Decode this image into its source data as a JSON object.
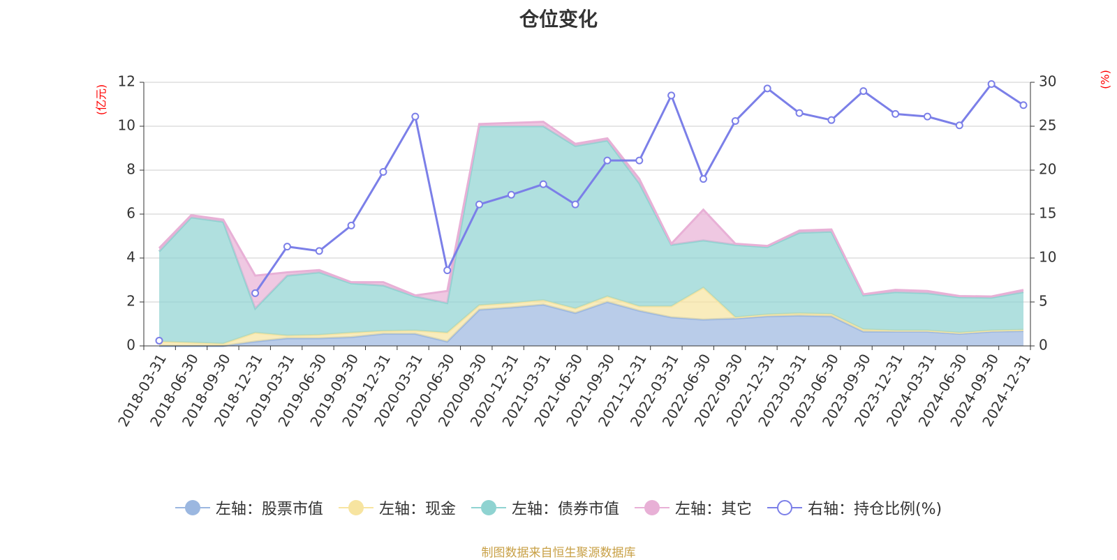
{
  "chart_data": {
    "type": "area",
    "title": "仓位变化",
    "ylabel_left": "(亿元)",
    "ylabel_right": "(%)",
    "ylim_left": [
      0,
      12
    ],
    "ylim_right": [
      0,
      30
    ],
    "yticks_left": [
      0,
      2,
      4,
      6,
      8,
      10,
      12
    ],
    "yticks_right": [
      0,
      5,
      10,
      15,
      20,
      25,
      30
    ],
    "grid": true,
    "legend_position": "bottom",
    "x": [
      "2018-03-31",
      "2018-06-30",
      "2018-09-30",
      "2018-12-31",
      "2019-03-31",
      "2019-06-30",
      "2019-09-30",
      "2019-12-31",
      "2020-03-31",
      "2020-06-30",
      "2020-09-30",
      "2020-12-31",
      "2021-03-31",
      "2021-06-30",
      "2021-09-30",
      "2021-12-31",
      "2022-03-31",
      "2022-06-30",
      "2022-09-30",
      "2022-12-31",
      "2023-03-31",
      "2023-06-30",
      "2023-09-30",
      "2023-12-31",
      "2024-03-31",
      "2024-06-30",
      "2024-09-30",
      "2024-12-31"
    ],
    "series": [
      {
        "name": "左轴：股票市值",
        "axis": "left",
        "stacked": true,
        "color": "#9bb7e0",
        "values": [
          0,
          0,
          0,
          0.2,
          0.35,
          0.35,
          0.4,
          0.55,
          0.55,
          0.2,
          1.65,
          1.75,
          1.88,
          1.5,
          2.0,
          1.6,
          1.3,
          1.2,
          1.25,
          1.35,
          1.38,
          1.35,
          0.65,
          0.65,
          0.65,
          0.55,
          0.65,
          0.68
        ]
      },
      {
        "name": "左轴：现金",
        "axis": "left",
        "stacked": true,
        "color": "#f7e4a0",
        "values": [
          0.2,
          0.15,
          0.1,
          0.4,
          0.12,
          0.15,
          0.2,
          0.13,
          0.15,
          0.4,
          0.2,
          0.2,
          0.2,
          0.2,
          0.25,
          0.2,
          0.5,
          1.45,
          0.05,
          0.08,
          0.1,
          0.1,
          0.1,
          0.05,
          0.05,
          0.05,
          0.05,
          0.05
        ]
      },
      {
        "name": "左轴：债券市值",
        "axis": "left",
        "stacked": true,
        "color": "#8fd3d1",
        "values": [
          4.1,
          5.7,
          5.55,
          1.1,
          2.73,
          2.85,
          2.25,
          2.07,
          1.55,
          1.35,
          8.15,
          8.05,
          7.92,
          7.4,
          7.1,
          5.6,
          2.8,
          2.15,
          3.3,
          3.07,
          3.67,
          3.75,
          1.55,
          1.75,
          1.7,
          1.62,
          1.5,
          1.72
        ]
      },
      {
        "name": "左轴：其它",
        "axis": "left",
        "stacked": true,
        "color": "#e8b0d6",
        "values": [
          0.15,
          0.1,
          0.1,
          1.5,
          0.15,
          0.1,
          0.05,
          0.15,
          0.05,
          0.55,
          0.1,
          0.15,
          0.2,
          0.1,
          0.1,
          0.2,
          0.05,
          1.4,
          0.05,
          0.05,
          0.1,
          0.1,
          0.05,
          0.1,
          0.1,
          0.05,
          0.05,
          0.1
        ]
      },
      {
        "name": "右轴：持仓比例(%)",
        "axis": "right",
        "type": "line",
        "color": "#7b7fe8",
        "values": [
          0.6,
          null,
          null,
          6.0,
          11.3,
          10.8,
          13.7,
          19.8,
          26.1,
          8.6,
          16.1,
          17.2,
          18.4,
          16.1,
          21.1,
          21.1,
          28.5,
          19.0,
          25.6,
          29.3,
          26.5,
          25.7,
          29.0,
          26.4,
          26.1,
          25.1,
          29.8,
          27.4
        ]
      }
    ],
    "source": "制图数据来自恒生聚源数据库"
  }
}
